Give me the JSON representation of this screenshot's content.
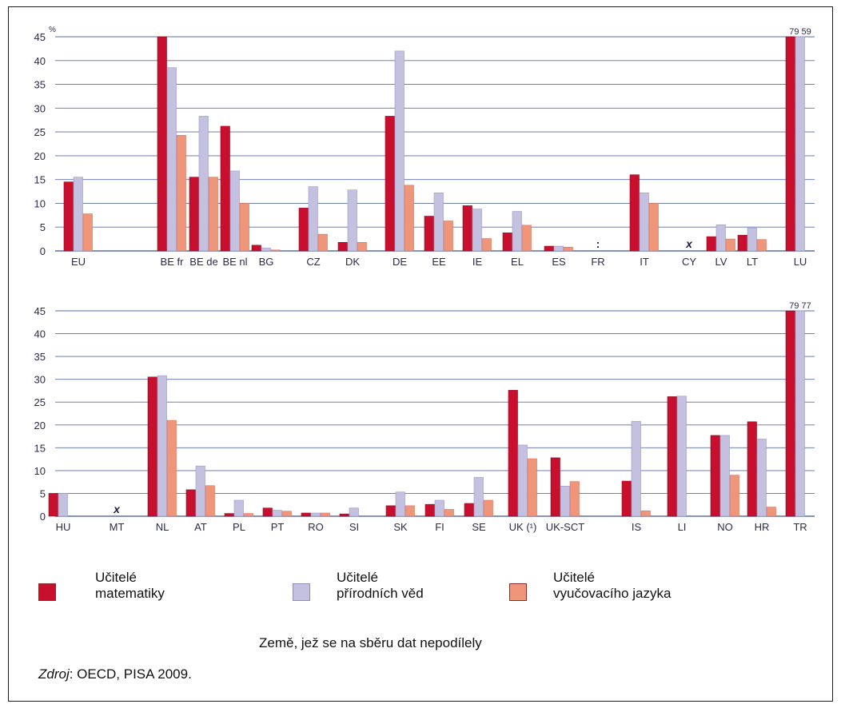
{
  "chart_data": [
    {
      "type": "bar",
      "panel": "top",
      "unit_label": "%",
      "ylim": [
        0,
        45
      ],
      "yticks": [
        0,
        5,
        10,
        15,
        20,
        25,
        30,
        35,
        40,
        45
      ],
      "grid": true,
      "categories": [
        "EU",
        "BE fr",
        "BE de",
        "BE nl",
        "BG",
        "CZ",
        "DK",
        "DE",
        "EE",
        "IE",
        "EL",
        "ES",
        "FR",
        "IT",
        "CY",
        "LV",
        "LT",
        "LU"
      ],
      "series": [
        {
          "name": "Učitelé matematiky",
          "values": [
            14.5,
            45.5,
            15.5,
            26.2,
            1.2,
            9.0,
            1.8,
            28.3,
            7.3,
            9.5,
            3.8,
            1.0,
            null,
            16.0,
            null,
            3.0,
            3.3,
            45
          ]
        },
        {
          "name": "Učitelé přírodních věd",
          "values": [
            15.5,
            38.5,
            28.3,
            16.8,
            0.6,
            13.5,
            12.8,
            42.0,
            12.2,
            8.8,
            8.3,
            1.0,
            null,
            12.2,
            null,
            5.5,
            4.8,
            45
          ]
        },
        {
          "name": "Učitelé vyučovacího jazyka",
          "values": [
            7.8,
            24.3,
            15.5,
            10.0,
            0.2,
            3.5,
            1.8,
            13.8,
            6.3,
            2.6,
            5.4,
            0.8,
            null,
            10.0,
            null,
            2.5,
            2.4,
            null
          ]
        }
      ],
      "markers": [
        {
          "category": "FR",
          "symbol": ":"
        },
        {
          "category": "CY",
          "symbol": "x"
        }
      ],
      "overflow_labels": [
        {
          "category": "LU",
          "text": "79 59"
        }
      ]
    },
    {
      "type": "bar",
      "panel": "bottom",
      "ylim": [
        0,
        45
      ],
      "yticks": [
        0,
        5,
        10,
        15,
        20,
        25,
        30,
        35,
        40,
        45
      ],
      "grid": true,
      "categories": [
        "HU",
        "MT",
        "NL",
        "AT",
        "PL",
        "PT",
        "RO",
        "SI",
        "SK",
        "FI",
        "SE",
        "UK (¹)",
        "UK-SCT",
        "IS",
        "LI",
        "NO",
        "HR",
        "TR"
      ],
      "series": [
        {
          "name": "Učitelé matematiky",
          "values": [
            5.0,
            null,
            30.5,
            5.8,
            0.6,
            1.8,
            0.7,
            0.5,
            2.3,
            2.6,
            2.8,
            27.6,
            12.8,
            7.7,
            26.2,
            17.7,
            20.7,
            45
          ]
        },
        {
          "name": "Učitelé přírodních věd",
          "values": [
            5.0,
            null,
            30.8,
            11.0,
            3.5,
            1.3,
            0.7,
            1.8,
            5.3,
            3.5,
            8.5,
            15.6,
            6.6,
            20.8,
            26.3,
            17.7,
            16.9,
            45
          ]
        },
        {
          "name": "Učitelé vyučovacího jazyka",
          "values": [
            null,
            null,
            21.0,
            6.7,
            0.6,
            1.1,
            0.7,
            null,
            2.3,
            1.5,
            3.5,
            12.6,
            7.6,
            1.2,
            null,
            9.0,
            2.0,
            null
          ]
        }
      ],
      "markers": [
        {
          "category": "MT",
          "symbol": "x"
        }
      ],
      "overflow_labels": [
        {
          "category": "TR",
          "text": "79 77"
        }
      ]
    }
  ],
  "legend": {
    "items": [
      {
        "line1": "Učitelé",
        "line2": "matematiky",
        "color": "#c8102e"
      },
      {
        "line1": "Učitelé",
        "line2": "přírodních věd",
        "color": "#c3c0e0"
      },
      {
        "line1": "Učitelé",
        "line2": "vyučovacího jazyka",
        "color": "#ef957a"
      }
    ],
    "note": "Země, jež se na sběru dat nepodílely",
    "source_label": "Zdroj",
    "source_text": ": OECD, PISA 2009."
  },
  "colors": {
    "grid": "#5a6ea8",
    "axis_text": "#2a2a4a"
  }
}
